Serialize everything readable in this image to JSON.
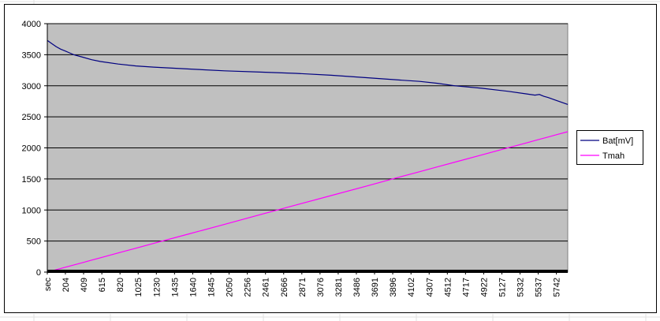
{
  "chart_data": {
    "type": "line",
    "x": [
      0,
      50,
      100,
      150,
      200,
      250,
      300,
      400,
      500,
      600,
      800,
      1000,
      1200,
      1600,
      2000,
      2400,
      2800,
      3200,
      3600,
      3900,
      4200,
      4400,
      4600,
      4900,
      5200,
      5400,
      5500,
      5550,
      5600,
      5650,
      5750,
      5870
    ],
    "series": [
      {
        "name": "Bat[mV]",
        "color": "#000080",
        "values": [
          3730,
          3680,
          3630,
          3590,
          3560,
          3530,
          3500,
          3460,
          3420,
          3390,
          3350,
          3320,
          3300,
          3270,
          3240,
          3220,
          3200,
          3170,
          3130,
          3100,
          3070,
          3040,
          3000,
          2960,
          2910,
          2870,
          2850,
          2860,
          2830,
          2810,
          2760,
          2700
        ]
      },
      {
        "name": "Tmah",
        "color": "#FF00FF",
        "values": [
          0,
          19,
          39,
          58,
          77,
          96,
          116,
          154,
          193,
          231,
          308,
          385,
          462,
          616,
          770,
          924,
          1078,
          1232,
          1386,
          1502,
          1617,
          1694,
          1771,
          1887,
          2002,
          2079,
          2118,
          2137,
          2156,
          2175,
          2214,
          2260
        ]
      }
    ],
    "xlim": [
      0,
      5870
    ],
    "xticks": [
      {
        "value": 0,
        "label": "sec"
      },
      204,
      409,
      615,
      820,
      1025,
      1230,
      1435,
      1640,
      1845,
      2050,
      2256,
      2461,
      2666,
      2871,
      3076,
      3281,
      3486,
      3691,
      3896,
      4102,
      4307,
      4512,
      4717,
      4922,
      5127,
      5332,
      5537,
      5742
    ],
    "ylim": [
      0,
      4000
    ],
    "yticks": [
      0,
      500,
      1000,
      1500,
      2000,
      2500,
      3000,
      3500,
      4000
    ],
    "grid": true,
    "plot_background": "#C0C0C0",
    "legend": "right"
  }
}
